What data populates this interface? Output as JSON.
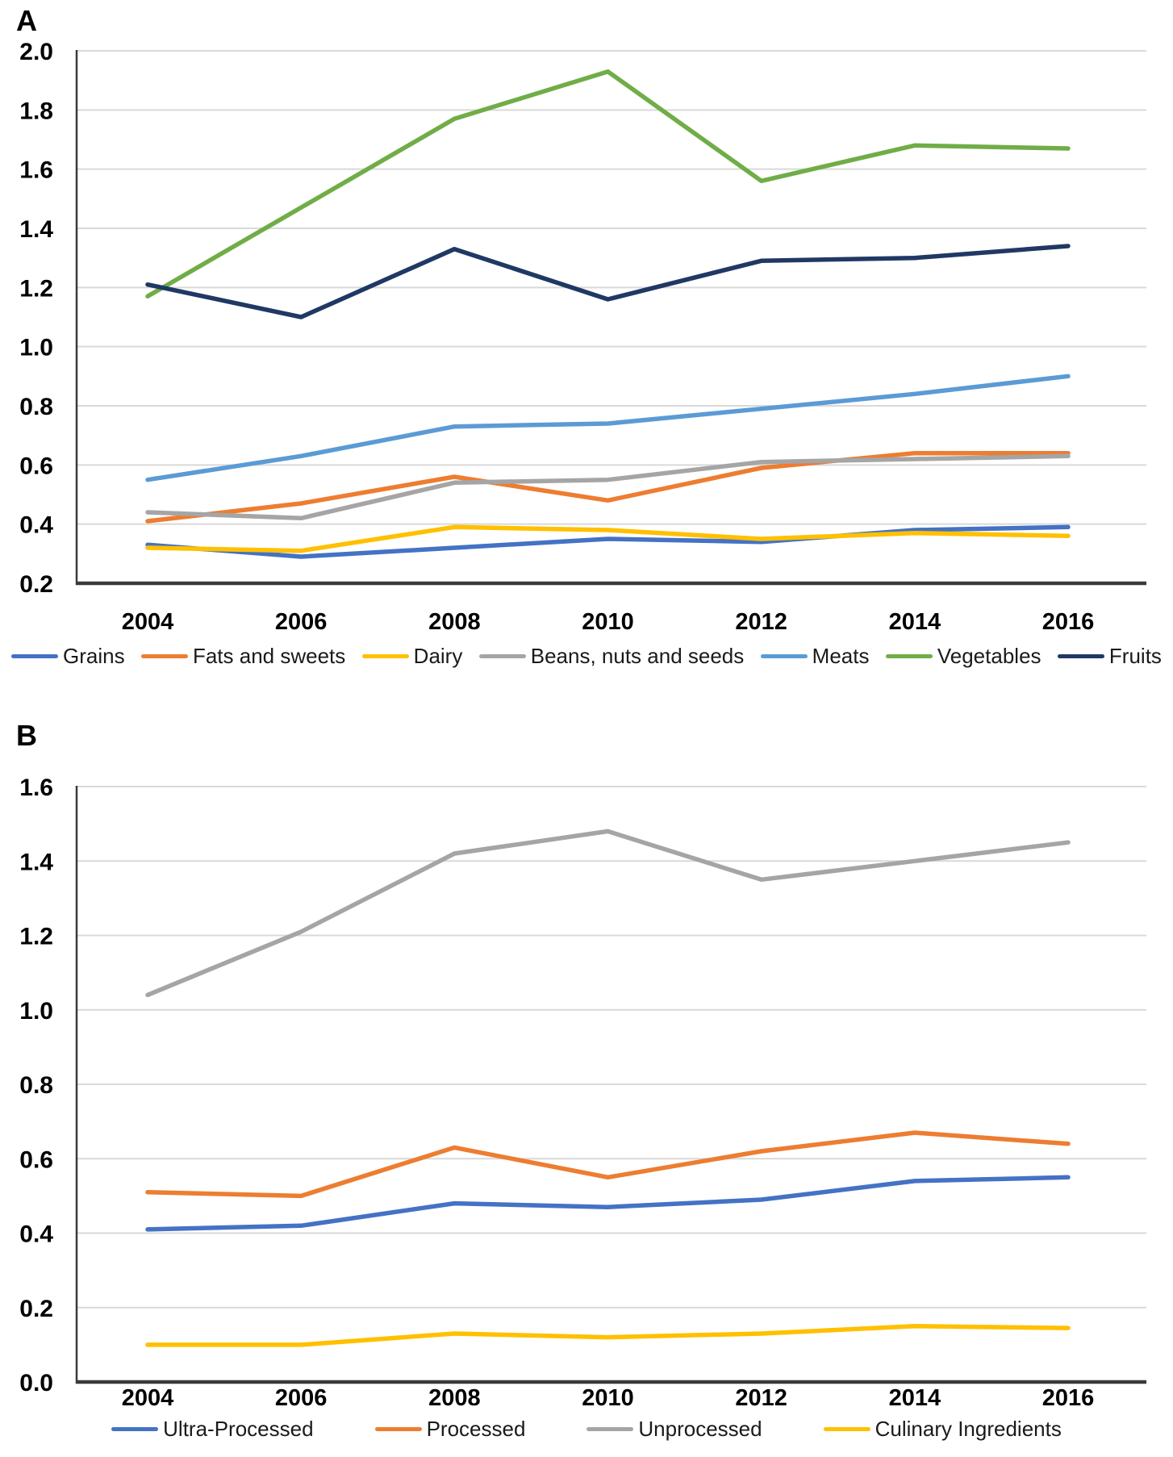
{
  "page": {
    "background": "#ffffff"
  },
  "panel_labels": [
    "A",
    "B"
  ],
  "axis_colors": {
    "gridline": "#d9d9d9",
    "axis_line": "#3a3a3a"
  },
  "chart_data": [
    {
      "type": "line",
      "panel": "A",
      "categories": [
        "2004",
        "2006",
        "2008",
        "2010",
        "2012",
        "2014",
        "2016"
      ],
      "series": [
        {
          "name": "Grains",
          "color": "#4472C4",
          "values": [
            0.33,
            0.29,
            0.32,
            0.35,
            0.34,
            0.38,
            0.39
          ]
        },
        {
          "name": "Fats and sweets",
          "color": "#ED7D31",
          "values": [
            0.41,
            0.47,
            0.56,
            0.48,
            0.59,
            0.64,
            0.64
          ]
        },
        {
          "name": "Dairy",
          "color": "#FFC000",
          "values": [
            0.32,
            0.31,
            0.39,
            0.38,
            0.35,
            0.37,
            0.36
          ]
        },
        {
          "name": "Beans, nuts and seeds",
          "color": "#A5A5A5",
          "values": [
            0.44,
            0.42,
            0.54,
            0.55,
            0.61,
            0.62,
            0.63
          ]
        },
        {
          "name": "Meats",
          "color": "#5B9BD5",
          "values": [
            0.55,
            0.63,
            0.73,
            0.74,
            0.79,
            0.84,
            0.9
          ]
        },
        {
          "name": "Vegetables",
          "color": "#70AD47",
          "values": [
            1.17,
            1.47,
            1.77,
            1.93,
            1.56,
            1.68,
            1.67
          ]
        },
        {
          "name": "Fruits",
          "color": "#203864",
          "values": [
            1.21,
            1.1,
            1.33,
            1.16,
            1.29,
            1.3,
            1.34
          ]
        }
      ],
      "ylim": [
        0.2,
        2.0
      ],
      "ytick_step": 0.2,
      "ytick_decimals": 1,
      "grid": true,
      "legend_position": "bottom",
      "title": "",
      "xlabel": "",
      "ylabel": ""
    },
    {
      "type": "line",
      "panel": "B",
      "categories": [
        "2004",
        "2006",
        "2008",
        "2010",
        "2012",
        "2014",
        "2016"
      ],
      "series": [
        {
          "name": "Ultra-Processed",
          "color": "#4472C4",
          "values": [
            0.41,
            0.42,
            0.48,
            0.47,
            0.49,
            0.54,
            0.55
          ]
        },
        {
          "name": "Processed",
          "color": "#ED7D31",
          "values": [
            0.51,
            0.5,
            0.63,
            0.55,
            0.62,
            0.67,
            0.64
          ]
        },
        {
          "name": "Unprocessed",
          "color": "#A5A5A5",
          "values": [
            1.04,
            1.21,
            1.42,
            1.48,
            1.35,
            1.4,
            1.45
          ]
        },
        {
          "name": "Culinary Ingredients",
          "color": "#FFC000",
          "values": [
            0.1,
            0.1,
            0.13,
            0.12,
            0.13,
            0.15,
            0.145
          ]
        }
      ],
      "ylim": [
        0.0,
        1.6
      ],
      "ytick_step": 0.2,
      "ytick_decimals": 1,
      "grid": true,
      "legend_position": "bottom",
      "title": "",
      "xlabel": "",
      "ylabel": ""
    }
  ]
}
